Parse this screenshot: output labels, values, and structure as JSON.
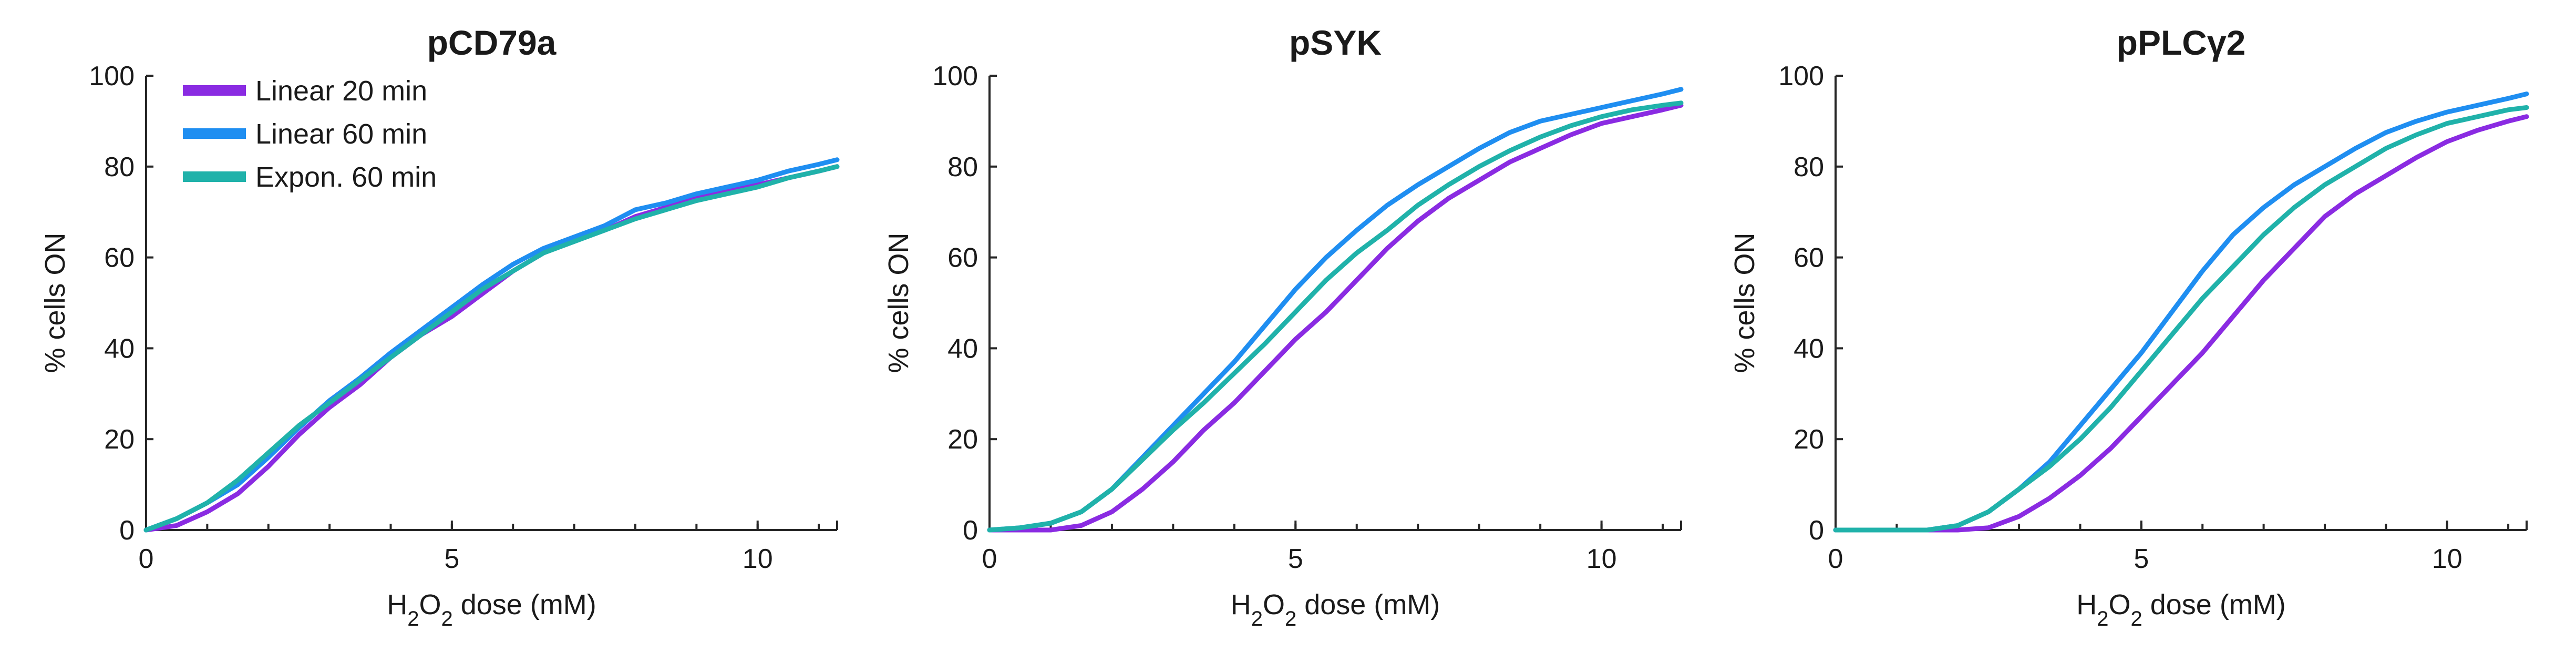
{
  "chart_data": [
    {
      "type": "line",
      "title": "pCD79a",
      "xlabel": {
        "prefix": "H",
        "sub1": "2",
        "mid": "O",
        "sub2": "2",
        "suffix": "  dose (mM)"
      },
      "ylabel": "% cells ON",
      "xlim": [
        0,
        11.3
      ],
      "ylim": [
        0,
        100
      ],
      "xticks": [
        0,
        5,
        10
      ],
      "yticks": [
        0,
        20,
        40,
        60,
        80,
        100
      ],
      "legend": {
        "position": "top-left"
      },
      "series": [
        {
          "name": "Linear 20 min",
          "color": "#8a2be2",
          "x": [
            0,
            0.5,
            1,
            1.5,
            2,
            2.5,
            3,
            3.5,
            4,
            4.5,
            5,
            5.5,
            6,
            6.5,
            7,
            7.5,
            8,
            8.5,
            9,
            9.5,
            10,
            10.5,
            11,
            11.3
          ],
          "y": [
            0,
            1,
            4,
            8,
            14,
            21,
            27,
            32,
            38,
            43,
            47,
            52,
            57,
            61,
            64,
            66,
            69,
            71,
            73,
            75,
            76,
            77.5,
            79,
            80
          ]
        },
        {
          "name": "Linear 60 min",
          "color": "#1f8ef1",
          "x": [
            0,
            0.5,
            1,
            1.5,
            2,
            2.5,
            3,
            3.5,
            4,
            4.5,
            5,
            5.5,
            6,
            6.5,
            7,
            7.5,
            8,
            8.5,
            9,
            9.5,
            10,
            10.5,
            11,
            11.3
          ],
          "y": [
            0,
            2.5,
            6,
            10,
            16,
            22.5,
            28.5,
            33.5,
            39,
            44,
            49,
            54,
            58.5,
            62,
            64.5,
            67,
            70.5,
            72,
            74,
            75.5,
            77,
            79,
            80.5,
            81.5
          ]
        },
        {
          "name": "Expon. 60 min",
          "color": "#20b2aa",
          "x": [
            0,
            0.5,
            1,
            1.5,
            2,
            2.5,
            3,
            3.5,
            4,
            4.5,
            5,
            5.5,
            6,
            6.5,
            7,
            7.5,
            8,
            8.5,
            9,
            9.5,
            10,
            10.5,
            11,
            11.3
          ],
          "y": [
            0,
            2.5,
            6,
            11,
            17,
            23,
            28,
            33,
            38,
            43,
            48,
            53,
            57,
            61,
            63.5,
            66,
            68.5,
            70.5,
            72.5,
            74,
            75.5,
            77.5,
            79,
            80
          ]
        }
      ]
    },
    {
      "type": "line",
      "title": "pSYK",
      "xlabel": {
        "prefix": "H",
        "sub1": "2",
        "mid": "O",
        "sub2": "2",
        "suffix": "  dose (mM)"
      },
      "ylabel": "% cells ON",
      "xlim": [
        0,
        11.3
      ],
      "ylim": [
        0,
        100
      ],
      "xticks": [
        0,
        5,
        10
      ],
      "yticks": [
        0,
        20,
        40,
        60,
        80,
        100
      ],
      "series": [
        {
          "name": "Linear 20 min",
          "color": "#8a2be2",
          "x": [
            0,
            0.5,
            1,
            1.5,
            2,
            2.5,
            3,
            3.5,
            4,
            4.5,
            5,
            5.5,
            6,
            6.5,
            7,
            7.5,
            8,
            8.5,
            9,
            9.5,
            10,
            10.5,
            11,
            11.3
          ],
          "y": [
            0,
            0,
            0,
            1,
            4,
            9,
            15,
            22,
            28,
            35,
            42,
            48,
            55,
            62,
            68,
            73,
            77,
            81,
            84,
            87,
            89.5,
            91,
            92.5,
            93.5
          ]
        },
        {
          "name": "Linear 60 min",
          "color": "#1f8ef1",
          "x": [
            0,
            0.5,
            1,
            1.5,
            2,
            2.5,
            3,
            3.5,
            4,
            4.5,
            5,
            5.5,
            6,
            6.5,
            7,
            7.5,
            8,
            8.5,
            9,
            9.5,
            10,
            10.5,
            11,
            11.3
          ],
          "y": [
            0,
            0.5,
            1.5,
            4,
            9,
            16,
            23,
            30,
            37,
            45,
            53,
            60,
            66,
            71.5,
            76,
            80,
            84,
            87.5,
            90,
            91.5,
            93,
            94.5,
            96,
            97
          ]
        },
        {
          "name": "Expon. 60 min",
          "color": "#20b2aa",
          "x": [
            0,
            0.5,
            1,
            1.5,
            2,
            2.5,
            3,
            3.5,
            4,
            4.5,
            5,
            5.5,
            6,
            6.5,
            7,
            7.5,
            8,
            8.5,
            9,
            9.5,
            10,
            10.5,
            11,
            11.3
          ],
          "y": [
            0,
            0.5,
            1.5,
            4,
            9,
            15.5,
            22,
            28,
            34.5,
            41,
            48,
            55,
            61,
            66,
            71.5,
            76,
            80,
            83.5,
            86.5,
            89,
            91,
            92.5,
            93.5,
            94
          ]
        }
      ]
    },
    {
      "type": "line",
      "title": "pPLCγ2",
      "xlabel": {
        "prefix": "H",
        "sub1": "2",
        "mid": "O",
        "sub2": "2",
        "suffix": "  dose (mM)"
      },
      "ylabel": "% cells ON",
      "xlim": [
        0,
        11.3
      ],
      "ylim": [
        0,
        100
      ],
      "xticks": [
        0,
        5,
        10
      ],
      "yticks": [
        0,
        20,
        40,
        60,
        80,
        100
      ],
      "series": [
        {
          "name": "Linear 20 min",
          "color": "#8a2be2",
          "x": [
            0,
            0.5,
            1,
            1.5,
            2,
            2.5,
            3,
            3.5,
            4,
            4.5,
            5,
            5.5,
            6,
            6.5,
            7,
            7.5,
            8,
            8.5,
            9,
            9.5,
            10,
            10.5,
            11,
            11.3
          ],
          "y": [
            0,
            0,
            0,
            0,
            0,
            0.5,
            3,
            7,
            12,
            18,
            25,
            32,
            39,
            47,
            55,
            62,
            69,
            74,
            78,
            82,
            85.5,
            88,
            90,
            91
          ]
        },
        {
          "name": "Linear 60 min",
          "color": "#1f8ef1",
          "x": [
            0,
            0.5,
            1,
            1.5,
            2,
            2.5,
            3,
            3.5,
            4,
            4.5,
            5,
            5.5,
            6,
            6.5,
            7,
            7.5,
            8,
            8.5,
            9,
            9.5,
            10,
            10.5,
            11,
            11.3
          ],
          "y": [
            0,
            0,
            0,
            0,
            1,
            4,
            9,
            15,
            23,
            31,
            39,
            48,
            57,
            65,
            71,
            76,
            80,
            84,
            87.5,
            90,
            92,
            93.5,
            95,
            96
          ]
        },
        {
          "name": "Expon. 60 min",
          "color": "#20b2aa",
          "x": [
            0,
            0.5,
            1,
            1.5,
            2,
            2.5,
            3,
            3.5,
            4,
            4.5,
            5,
            5.5,
            6,
            6.5,
            7,
            7.5,
            8,
            8.5,
            9,
            9.5,
            10,
            10.5,
            11,
            11.3
          ],
          "y": [
            0,
            0,
            0,
            0,
            1,
            4,
            9,
            14,
            20,
            27,
            35,
            43,
            51,
            58,
            65,
            71,
            76,
            80,
            84,
            87,
            89.5,
            91,
            92.5,
            93
          ]
        }
      ]
    }
  ]
}
